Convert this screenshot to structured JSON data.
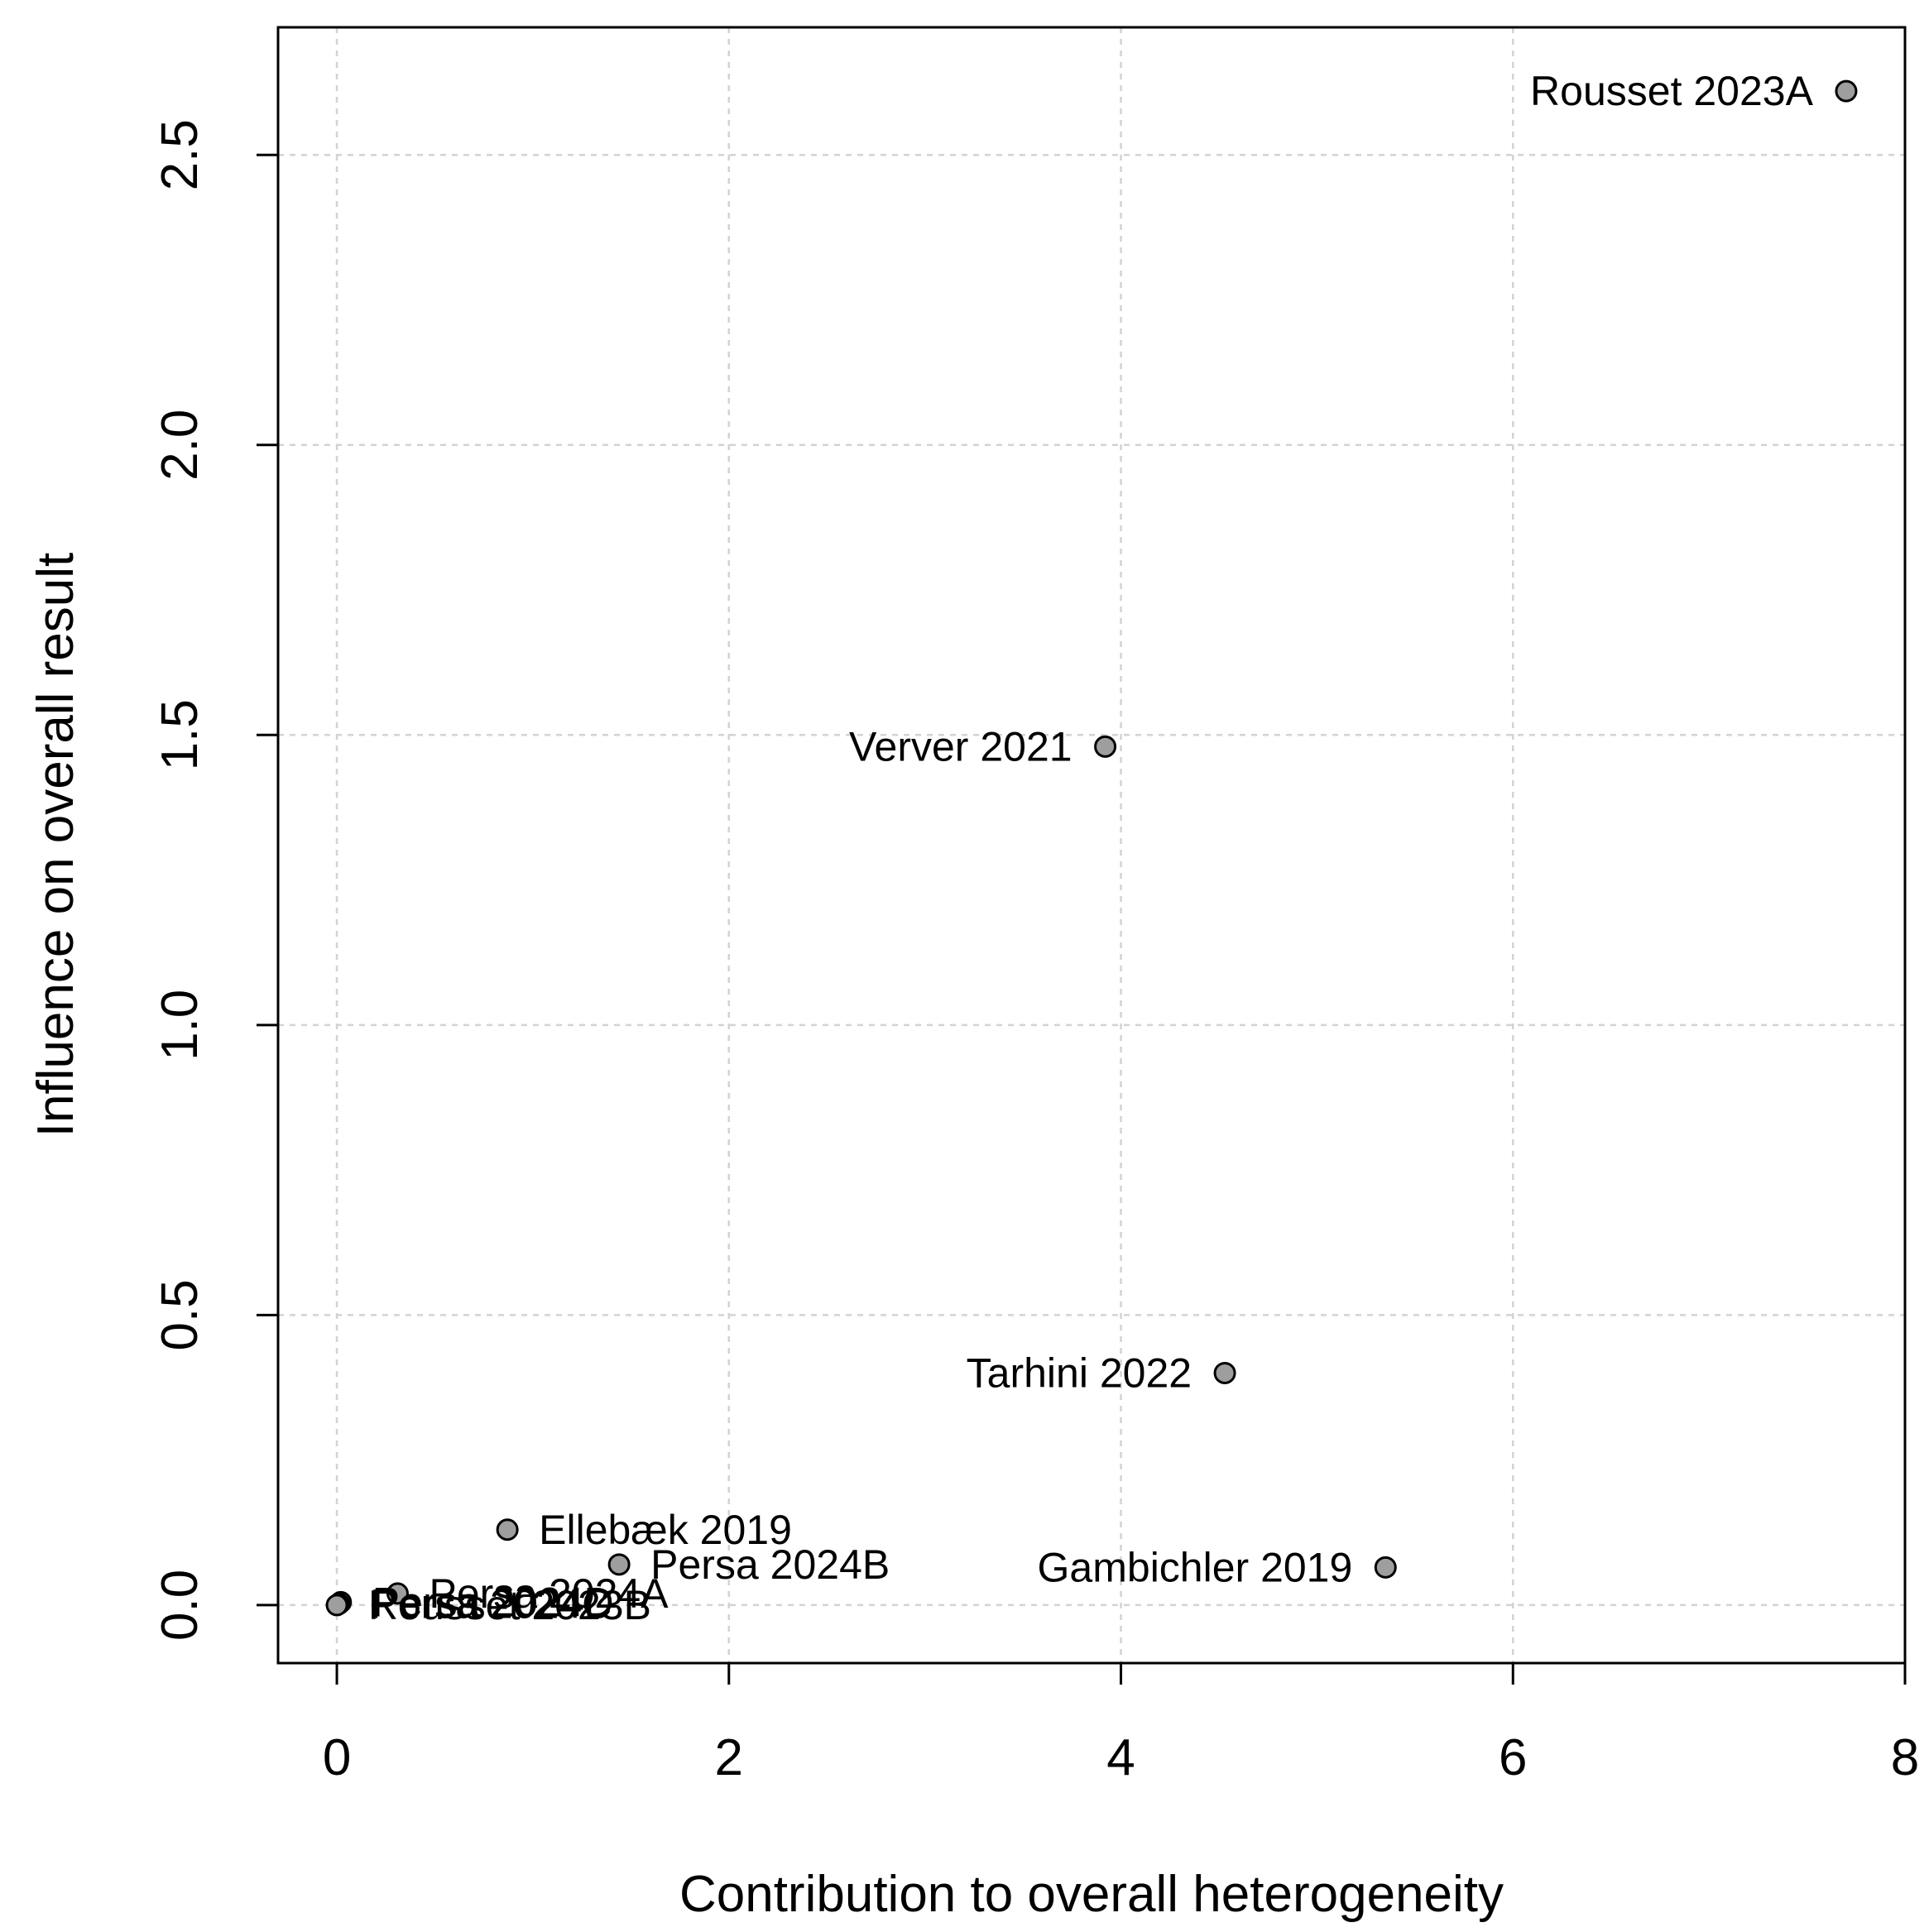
{
  "chart_data": {
    "type": "scatter",
    "title": "",
    "xlabel": "Contribution to overall heterogeneity",
    "ylabel": "Influence on overall result",
    "xlim": [
      -0.3,
      8.0
    ],
    "ylim": [
      -0.1,
      2.72
    ],
    "xticks": [
      0,
      2,
      4,
      6,
      8
    ],
    "yticks": [
      0.0,
      0.5,
      1.0,
      1.5,
      2.0,
      2.5
    ],
    "xtick_labels": [
      "0",
      "2",
      "4",
      "6",
      "8"
    ],
    "ytick_labels": [
      "0.0",
      "0.5",
      "1.0",
      "1.5",
      "2.0",
      "2.5"
    ],
    "grid": true,
    "legend": "none",
    "point_color": "#9e9e9e",
    "points": [
      {
        "label": "Rousset 2023A",
        "x": 7.7,
        "y": 2.61,
        "label_side": "left"
      },
      {
        "label": "Verver 2021",
        "x": 3.92,
        "y": 1.48,
        "label_side": "left"
      },
      {
        "label": "Tarhini 2022",
        "x": 4.53,
        "y": 0.4,
        "label_side": "left"
      },
      {
        "label": "Gambichler 2019",
        "x": 5.35,
        "y": 0.065,
        "label_side": "left"
      },
      {
        "label": "Ellebæk 2019",
        "x": 0.87,
        "y": 0.13,
        "label_side": "right"
      },
      {
        "label": "Persa 2024B",
        "x": 1.44,
        "y": 0.07,
        "label_side": "right"
      },
      {
        "label": "Persa 2024A",
        "x": 0.31,
        "y": 0.02,
        "label_side": "right"
      },
      {
        "label": "Persa 2024D",
        "x": 0.02,
        "y": 0.005,
        "label_side": "right"
      },
      {
        "label": "Persa 2024C",
        "x": 0.01,
        "y": 0.002,
        "label_side": "right"
      },
      {
        "label": "Rousset 2023B",
        "x": 0.0,
        "y": 0.0,
        "label_side": "right"
      }
    ]
  }
}
